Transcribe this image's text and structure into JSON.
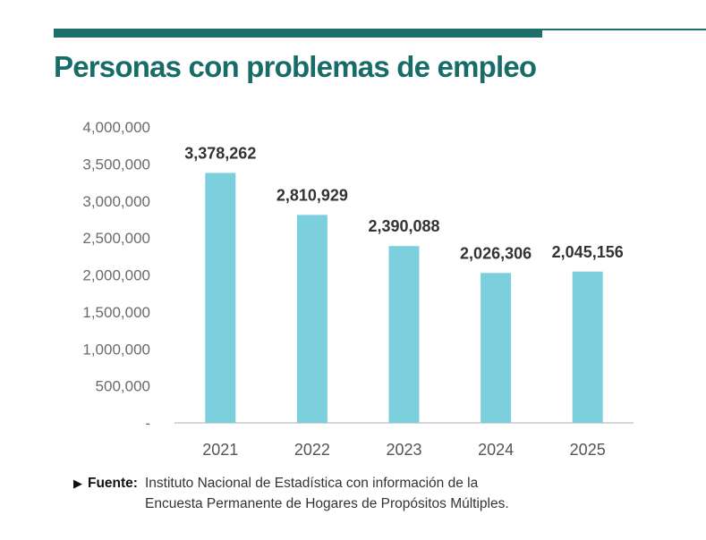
{
  "title": "Personas con problemas de empleo",
  "colors": {
    "accent": "#1e6e6a",
    "bar": "#7ccfdc",
    "axis": "#6b6b6b"
  },
  "chart_data": {
    "type": "bar",
    "title": "Personas con problemas de empleo",
    "categories": [
      "2021",
      "2022",
      "2023",
      "2024",
      "2025"
    ],
    "values": [
      3378262,
      2810929,
      2390088,
      2026306,
      2045156
    ],
    "data_labels": [
      "3,378,262",
      "2,810,929",
      "2,390,088",
      "2,026,306",
      "2,045,156"
    ],
    "y_ticks": [
      0,
      500000,
      1000000,
      1500000,
      2000000,
      2500000,
      3000000,
      3500000,
      4000000
    ],
    "y_tick_labels": [
      "-",
      "500,000",
      "1,000,000",
      "1,500,000",
      "2,000,000",
      "2,500,000",
      "3,000,000",
      "3,500,000",
      "4,000,000"
    ],
    "ylim": [
      0,
      4000000
    ],
    "xlabel": "",
    "ylabel": "",
    "grid": false
  },
  "source": {
    "label": "Fuente:",
    "line1": "Instituto Nacional de Estadística con información de la",
    "line2": "Encuesta Permanente de Hogares de Propósitos Múltiples."
  }
}
